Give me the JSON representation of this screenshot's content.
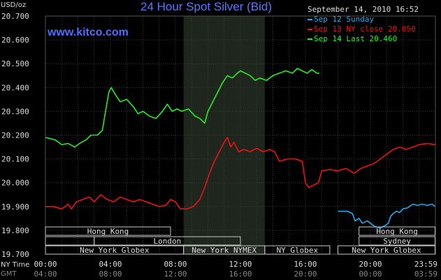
{
  "chart_data": {
    "type": "line",
    "title": "24 Hour Spot Silver (Bid)",
    "ylabel": "USD/oz",
    "ylim": [
      19.7,
      20.7
    ],
    "yticks": [
      "19.700",
      "19.800",
      "19.900",
      "20.000",
      "20.100",
      "20.200",
      "20.300",
      "20.400",
      "20.500",
      "20.600",
      "20.700"
    ],
    "timestamp": "September 14, 2010 16:52",
    "brand": "www.kitco.com",
    "x_row_labels": {
      "primary": "NY Time",
      "secondary": "GMT"
    },
    "x_ticks": [
      {
        "h": 0,
        "ny": "00:00",
        "gmt": "04:00"
      },
      {
        "h": 4,
        "ny": "04:00",
        "gmt": "08:00"
      },
      {
        "h": 8,
        "ny": "08:00",
        "gmt": "12:00"
      },
      {
        "h": 12,
        "ny": "12:00",
        "gmt": "16:00"
      },
      {
        "h": 16,
        "ny": "16:00",
        "gmt": "20:00"
      },
      {
        "h": 20,
        "ny": "20:00",
        "gmt": "00:00"
      },
      {
        "h": 23.98,
        "ny": "23:59",
        "gmt": "03:59"
      }
    ],
    "highlight_hours": [
      8.5,
      13.5
    ],
    "colors": {
      "green": "#22ee22",
      "red": "#ee1111",
      "cyan": "#22aaee",
      "grid": "#3a3a3a",
      "band": "#3a3a3a",
      "text": "#dddddd"
    },
    "series": [
      {
        "name": "Sep 12 Sunday",
        "color": "#22aaee",
        "points": [
          [
            18.0,
            19.88
          ],
          [
            18.6,
            19.88
          ],
          [
            18.9,
            19.87
          ],
          [
            19.05,
            19.84
          ],
          [
            19.3,
            19.85
          ],
          [
            19.5,
            19.83
          ],
          [
            19.8,
            19.84
          ],
          [
            20.0,
            19.83
          ],
          [
            20.3,
            19.815
          ],
          [
            20.6,
            19.81
          ],
          [
            20.9,
            19.82
          ],
          [
            21.1,
            19.83
          ],
          [
            21.25,
            19.86
          ],
          [
            21.4,
            19.87
          ],
          [
            21.6,
            19.88
          ],
          [
            21.8,
            19.875
          ],
          [
            22.0,
            19.89
          ],
          [
            22.3,
            19.895
          ],
          [
            22.6,
            19.91
          ],
          [
            22.9,
            19.905
          ],
          [
            23.2,
            19.91
          ],
          [
            23.5,
            19.905
          ],
          [
            23.8,
            19.91
          ],
          [
            23.98,
            19.9
          ]
        ]
      },
      {
        "name": "Sep 13 NY close 20.050",
        "color": "#ee1111",
        "points": [
          [
            0,
            19.9
          ],
          [
            0.5,
            19.9
          ],
          [
            1,
            19.89
          ],
          [
            1.4,
            19.91
          ],
          [
            1.6,
            19.89
          ],
          [
            1.9,
            19.92
          ],
          [
            2.3,
            19.93
          ],
          [
            2.7,
            19.94
          ],
          [
            3.0,
            19.92
          ],
          [
            3.4,
            19.95
          ],
          [
            3.8,
            19.93
          ],
          [
            4.2,
            19.92
          ],
          [
            4.6,
            19.94
          ],
          [
            5.0,
            19.93
          ],
          [
            5.4,
            19.92
          ],
          [
            5.8,
            19.93
          ],
          [
            6.2,
            19.92
          ],
          [
            6.6,
            19.91
          ],
          [
            7.0,
            19.9
          ],
          [
            7.4,
            19.905
          ],
          [
            7.7,
            19.93
          ],
          [
            8.0,
            19.92
          ],
          [
            8.3,
            19.89
          ],
          [
            8.7,
            19.89
          ],
          [
            9.1,
            19.9
          ],
          [
            9.5,
            19.93
          ],
          [
            9.8,
            19.98
          ],
          [
            10.1,
            20.04
          ],
          [
            10.4,
            20.09
          ],
          [
            10.7,
            20.13
          ],
          [
            11.0,
            20.17
          ],
          [
            11.2,
            20.19
          ],
          [
            11.4,
            20.15
          ],
          [
            11.6,
            20.17
          ],
          [
            11.9,
            20.13
          ],
          [
            12.2,
            20.14
          ],
          [
            12.6,
            20.13
          ],
          [
            13.0,
            20.145
          ],
          [
            13.4,
            20.13
          ],
          [
            13.8,
            20.14
          ],
          [
            14.1,
            20.13
          ],
          [
            14.4,
            20.09
          ],
          [
            14.9,
            20.1
          ],
          [
            15.4,
            20.1
          ],
          [
            15.8,
            20.09
          ],
          [
            16.0,
            20.0
          ],
          [
            16.2,
            19.98
          ],
          [
            16.5,
            19.99
          ],
          [
            16.8,
            20.0
          ],
          [
            17.0,
            20.05
          ],
          [
            17.5,
            20.055
          ],
          [
            18.0,
            20.05
          ],
          [
            18.5,
            20.06
          ],
          [
            19.0,
            20.04
          ],
          [
            19.4,
            20.06
          ],
          [
            19.8,
            20.07
          ],
          [
            20.2,
            20.08
          ],
          [
            20.6,
            20.1
          ],
          [
            21.0,
            20.12
          ],
          [
            21.4,
            20.14
          ],
          [
            21.8,
            20.15
          ],
          [
            22.2,
            20.14
          ],
          [
            22.6,
            20.15
          ],
          [
            23.0,
            20.16
          ],
          [
            23.5,
            20.165
          ],
          [
            23.98,
            20.16
          ]
        ]
      },
      {
        "name": "Sep 14 Last 20.460",
        "color": "#22ee22",
        "points": [
          [
            0,
            20.19
          ],
          [
            0.6,
            20.18
          ],
          [
            1.0,
            20.16
          ],
          [
            1.4,
            20.165
          ],
          [
            1.8,
            20.15
          ],
          [
            2.1,
            20.165
          ],
          [
            2.5,
            20.18
          ],
          [
            2.8,
            20.2
          ],
          [
            3.2,
            20.2
          ],
          [
            3.5,
            20.22
          ],
          [
            3.7,
            20.3
          ],
          [
            3.9,
            20.38
          ],
          [
            4.05,
            20.4
          ],
          [
            4.3,
            20.37
          ],
          [
            4.6,
            20.34
          ],
          [
            5.0,
            20.35
          ],
          [
            5.4,
            20.32
          ],
          [
            5.7,
            20.29
          ],
          [
            6.0,
            20.3
          ],
          [
            6.4,
            20.28
          ],
          [
            6.8,
            20.27
          ],
          [
            7.2,
            20.3
          ],
          [
            7.5,
            20.33
          ],
          [
            7.8,
            20.3
          ],
          [
            8.1,
            20.31
          ],
          [
            8.4,
            20.3
          ],
          [
            8.8,
            20.31
          ],
          [
            9.2,
            20.28
          ],
          [
            9.5,
            20.27
          ],
          [
            9.8,
            20.25
          ],
          [
            10.0,
            20.3
          ],
          [
            10.3,
            20.34
          ],
          [
            10.6,
            20.38
          ],
          [
            10.9,
            20.42
          ],
          [
            11.2,
            20.45
          ],
          [
            11.5,
            20.44
          ],
          [
            11.8,
            20.46
          ],
          [
            12.0,
            20.47
          ],
          [
            12.3,
            20.46
          ],
          [
            12.6,
            20.45
          ],
          [
            12.9,
            20.43
          ],
          [
            13.2,
            20.44
          ],
          [
            13.6,
            20.43
          ],
          [
            14.0,
            20.45
          ],
          [
            14.4,
            20.46
          ],
          [
            14.8,
            20.47
          ],
          [
            15.2,
            20.46
          ],
          [
            15.5,
            20.48
          ],
          [
            15.8,
            20.47
          ],
          [
            16.1,
            20.46
          ],
          [
            16.4,
            20.475
          ],
          [
            16.7,
            20.46
          ],
          [
            16.85,
            20.46
          ]
        ]
      }
    ],
    "sessions": [
      {
        "label": "Hong Kong",
        "start": 0,
        "end": 7.7,
        "row": 0
      },
      {
        "label": "Sydney",
        "start": 19.3,
        "end": 23.98,
        "row": 1
      },
      {
        "label": "Hong Kong",
        "start": 19.3,
        "end": 23.98,
        "row": 0
      },
      {
        "label": "London",
        "start": 3,
        "end": 12,
        "row": 1
      },
      {
        "label": "",
        "start": 0,
        "end": 3,
        "row": 1
      },
      {
        "label": "New York Globex",
        "start": 0,
        "end": 8.5,
        "row": 2
      },
      {
        "label": "New York NYMEX",
        "start": 8.5,
        "end": 13.5,
        "row": 2
      },
      {
        "label": "NY Globex",
        "start": 13.5,
        "end": 17.5,
        "row": 2
      },
      {
        "label": "New York Globex",
        "start": 18.0,
        "end": 23.98,
        "row": 2
      }
    ]
  }
}
